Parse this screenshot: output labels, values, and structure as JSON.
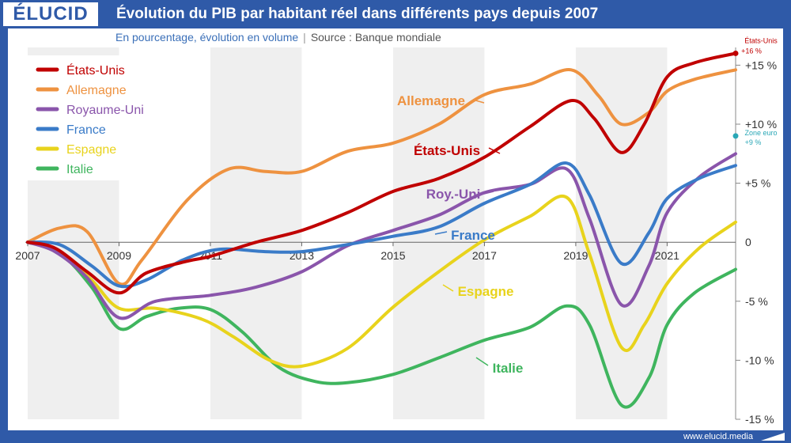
{
  "brand": {
    "logo": "ÉLUCID",
    "url": "www.elucid.media"
  },
  "header": {
    "title": "Évolution du PIB par habitant réel dans différents pays depuis 2007",
    "subtitle": "En pourcentage, évolution en volume",
    "source": "Source : Banque mondiale"
  },
  "chart_data": {
    "type": "line",
    "x_tick_labels": [
      "2007",
      "2009",
      "2011",
      "2013",
      "2015",
      "2017",
      "2019",
      "2021"
    ],
    "xlim": [
      2007,
      2022.5
    ],
    "ylim": [
      -15,
      16.5
    ],
    "y_tick_labels": [
      {
        "v": 15,
        "label": "+15 %"
      },
      {
        "v": 10,
        "label": "+10 %"
      },
      {
        "v": 5,
        "label": "+5 %"
      },
      {
        "v": 0,
        "label": "0"
      },
      {
        "v": -5,
        "label": "-5 %"
      },
      {
        "v": -10,
        "label": "-10 %"
      },
      {
        "v": -15,
        "label": "-15 %"
      }
    ],
    "shaded_periods": [
      [
        2007,
        2009
      ],
      [
        2011,
        2013
      ],
      [
        2015,
        2017
      ],
      [
        2019,
        2021
      ]
    ],
    "legend_position": "top-left",
    "series": [
      {
        "key": "us",
        "name": "États-Unis",
        "label": "États-Unis",
        "color": "#c00000",
        "points": [
          [
            2007,
            0
          ],
          [
            2007.6,
            -0.5
          ],
          [
            2008.3,
            -2.5
          ],
          [
            2009,
            -4.3
          ],
          [
            2009.6,
            -2.6
          ],
          [
            2010.5,
            -1.6
          ],
          [
            2011,
            -1.2
          ],
          [
            2012,
            0
          ],
          [
            2013,
            1
          ],
          [
            2014,
            2.5
          ],
          [
            2015,
            4.3
          ],
          [
            2016,
            5.4
          ],
          [
            2017,
            7.2
          ],
          [
            2018,
            9.8
          ],
          [
            2018.9,
            12
          ],
          [
            2019.4,
            10.5
          ],
          [
            2020,
            7.6
          ],
          [
            2020.5,
            10
          ],
          [
            2021,
            14
          ],
          [
            2021.6,
            15.2
          ],
          [
            2022.5,
            16
          ]
        ]
      },
      {
        "key": "de",
        "name": "Allemagne",
        "label": "Allemagne",
        "color": "#ee9240",
        "points": [
          [
            2007,
            0
          ],
          [
            2007.7,
            1.2
          ],
          [
            2008.3,
            0.9
          ],
          [
            2009,
            -3.5
          ],
          [
            2009.5,
            -1.5
          ],
          [
            2010.5,
            3.6
          ],
          [
            2011.4,
            6.2
          ],
          [
            2012.2,
            6
          ],
          [
            2013,
            6
          ],
          [
            2014,
            7.7
          ],
          [
            2015,
            8.4
          ],
          [
            2016,
            10
          ],
          [
            2017,
            12.5
          ],
          [
            2018,
            13.4
          ],
          [
            2018.9,
            14.6
          ],
          [
            2019.5,
            12.4
          ],
          [
            2020,
            10
          ],
          [
            2020.6,
            11
          ],
          [
            2021,
            12.8
          ],
          [
            2021.6,
            13.8
          ],
          [
            2022.5,
            14.6
          ]
        ]
      },
      {
        "key": "uk",
        "name": "Royaume-Uni",
        "label": "Roy.-Uni",
        "color": "#8a55ab",
        "points": [
          [
            2007,
            0
          ],
          [
            2007.6,
            -0.8
          ],
          [
            2008.3,
            -3
          ],
          [
            2009,
            -6.4
          ],
          [
            2009.8,
            -5
          ],
          [
            2011,
            -4.5
          ],
          [
            2012,
            -3.8
          ],
          [
            2013,
            -2.5
          ],
          [
            2014,
            -0.3
          ],
          [
            2015,
            1
          ],
          [
            2016,
            2.3
          ],
          [
            2017,
            4.2
          ],
          [
            2018,
            4.9
          ],
          [
            2018.8,
            6.2
          ],
          [
            2019.3,
            2
          ],
          [
            2020,
            -5.3
          ],
          [
            2020.6,
            -2
          ],
          [
            2021,
            2.5
          ],
          [
            2021.7,
            5.5
          ],
          [
            2022.5,
            7.5
          ]
        ]
      },
      {
        "key": "fr",
        "name": "France",
        "label": "France",
        "color": "#3a7bc8",
        "points": [
          [
            2007,
            0
          ],
          [
            2007.7,
            -0.2
          ],
          [
            2008.4,
            -2
          ],
          [
            2009,
            -3.7
          ],
          [
            2009.6,
            -3.2
          ],
          [
            2010.4,
            -1.5
          ],
          [
            2011.2,
            -0.6
          ],
          [
            2012.2,
            -0.8
          ],
          [
            2013,
            -0.8
          ],
          [
            2014,
            -0.2
          ],
          [
            2015,
            0.5
          ],
          [
            2016,
            1.3
          ],
          [
            2017,
            3.3
          ],
          [
            2018,
            4.9
          ],
          [
            2018.8,
            6.7
          ],
          [
            2019.3,
            4
          ],
          [
            2020,
            -1.8
          ],
          [
            2020.6,
            0.8
          ],
          [
            2021,
            3.7
          ],
          [
            2021.7,
            5.4
          ],
          [
            2022.5,
            6.5
          ]
        ]
      },
      {
        "key": "es",
        "name": "Espagne",
        "label": "Espagne",
        "color": "#e8d31c",
        "points": [
          [
            2007,
            0
          ],
          [
            2007.7,
            -0.8
          ],
          [
            2008.4,
            -3.2
          ],
          [
            2009,
            -5.6
          ],
          [
            2009.8,
            -5.6
          ],
          [
            2010.8,
            -6.5
          ],
          [
            2011.5,
            -8
          ],
          [
            2012.3,
            -10
          ],
          [
            2013,
            -10.5
          ],
          [
            2014,
            -9
          ],
          [
            2015,
            -5.5
          ],
          [
            2016,
            -2.5
          ],
          [
            2017,
            0.2
          ],
          [
            2018,
            2.2
          ],
          [
            2018.8,
            3.8
          ],
          [
            2019.3,
            -1
          ],
          [
            2020,
            -8.9
          ],
          [
            2020.5,
            -7
          ],
          [
            2021,
            -3.5
          ],
          [
            2021.7,
            -0.5
          ],
          [
            2022.5,
            1.7
          ]
        ]
      },
      {
        "key": "it",
        "name": "Italie",
        "label": "Italie",
        "color": "#3fb55e",
        "points": [
          [
            2007,
            0
          ],
          [
            2007.7,
            -0.9
          ],
          [
            2008.4,
            -3.8
          ],
          [
            2009,
            -7.3
          ],
          [
            2009.6,
            -6.3
          ],
          [
            2010.3,
            -5.6
          ],
          [
            2011,
            -5.7
          ],
          [
            2011.7,
            -7.6
          ],
          [
            2012.5,
            -10.6
          ],
          [
            2013.3,
            -11.8
          ],
          [
            2014,
            -11.9
          ],
          [
            2015,
            -11.2
          ],
          [
            2016,
            -9.8
          ],
          [
            2017,
            -8.3
          ],
          [
            2018,
            -7.2
          ],
          [
            2018.8,
            -5.4
          ],
          [
            2019.3,
            -7
          ],
          [
            2020,
            -13.8
          ],
          [
            2020.6,
            -11.5
          ],
          [
            2021,
            -7
          ],
          [
            2021.6,
            -4.3
          ],
          [
            2022.5,
            -2.3
          ]
        ]
      }
    ],
    "end_annotations": [
      {
        "key": "us",
        "text1": "États-Unis",
        "text2": "+16 %",
        "value": 16,
        "color": "#c00000"
      },
      {
        "key": "euro",
        "text1": "Zone euro",
        "text2": "+9 %",
        "value": 9,
        "color": "#2aa7b6"
      }
    ]
  }
}
